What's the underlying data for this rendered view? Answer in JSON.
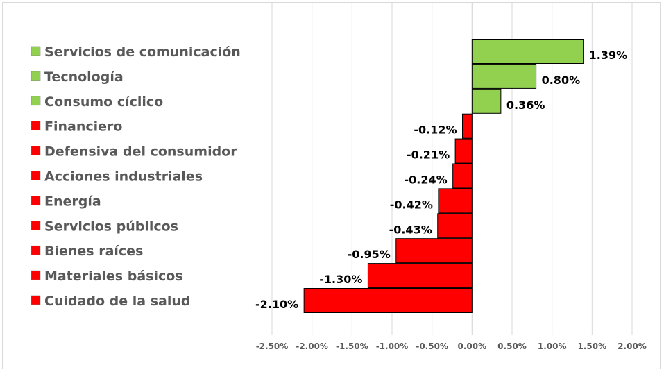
{
  "chart_data": {
    "type": "bar",
    "orientation": "horizontal",
    "title": "",
    "xlabel": "",
    "ylabel": "",
    "xlim": [
      -0.025,
      0.02
    ],
    "x_ticks": [
      "-2.50%",
      "-2.00%",
      "-1.50%",
      "-1.00%",
      "-0.50%",
      "0.00%",
      "0.50%",
      "1.00%",
      "1.50%",
      "2.00%"
    ],
    "x_tick_values": [
      -0.025,
      -0.02,
      -0.015,
      -0.01,
      -0.005,
      0,
      0.005,
      0.01,
      0.015,
      0.02
    ],
    "grid": true,
    "legend_position": "left",
    "colors": {
      "positive": "#92d050",
      "negative": "#ff0000",
      "grid": "#d9d9d9",
      "bar_border": "#000000"
    },
    "categories": [
      "Servicios de comunicación",
      "Tecnología",
      "Consumo cíclico",
      "Financiero",
      "Defensiva del consumidor",
      "Acciones industriales",
      "Energía",
      "Servicios públicos",
      "Bienes raíces",
      "Materiales básicos",
      "Cuidado de la salud"
    ],
    "values": [
      0.0139,
      0.008,
      0.0036,
      -0.0012,
      -0.0021,
      -0.0024,
      -0.0042,
      -0.0043,
      -0.0095,
      -0.013,
      -0.021
    ],
    "data_labels": [
      "1.39%",
      "0.80%",
      "0.36%",
      "-0.12%",
      "-0.21%",
      "-0.24%",
      "-0.42%",
      "-0.43%",
      "-0.95%",
      "-1.30%",
      "-2.10%"
    ]
  }
}
